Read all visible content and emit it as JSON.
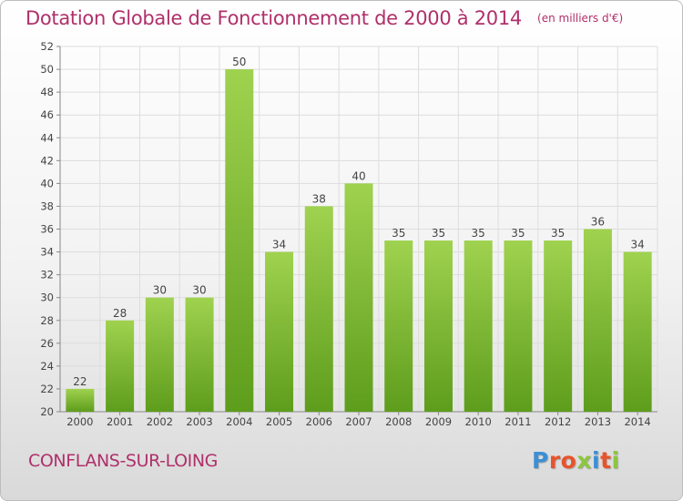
{
  "header": {
    "title": "Dotation Globale de Fonctionnement de 2000 à 2014",
    "unit": "(en milliers d'€)"
  },
  "footer": {
    "commune": "CONFLANS-SUR-LOING",
    "brand": "Proxiti",
    "brand_colors": [
      "#3a8fd6",
      "#e8542a",
      "#e8542a",
      "#8cc63f",
      "#3a8fd6",
      "#e8542a",
      "#8cc63f"
    ]
  },
  "chart_data": {
    "type": "bar",
    "categories": [
      "2000",
      "2001",
      "2002",
      "2003",
      "2004",
      "2005",
      "2006",
      "2007",
      "2008",
      "2009",
      "2010",
      "2011",
      "2012",
      "2013",
      "2014"
    ],
    "values": [
      22,
      28,
      30,
      30,
      50,
      34,
      38,
      40,
      35,
      35,
      35,
      35,
      35,
      36,
      34
    ],
    "title": "Dotation Globale de Fonctionnement de 2000 à 2014",
    "ylim": [
      20,
      52
    ],
    "yticks": [
      20,
      22,
      24,
      26,
      28,
      30,
      32,
      34,
      36,
      38,
      40,
      42,
      44,
      46,
      48,
      50,
      52
    ],
    "grid": true,
    "bar_color_top": "#9fd24f",
    "bar_color_bottom": "#5e9d1c"
  }
}
